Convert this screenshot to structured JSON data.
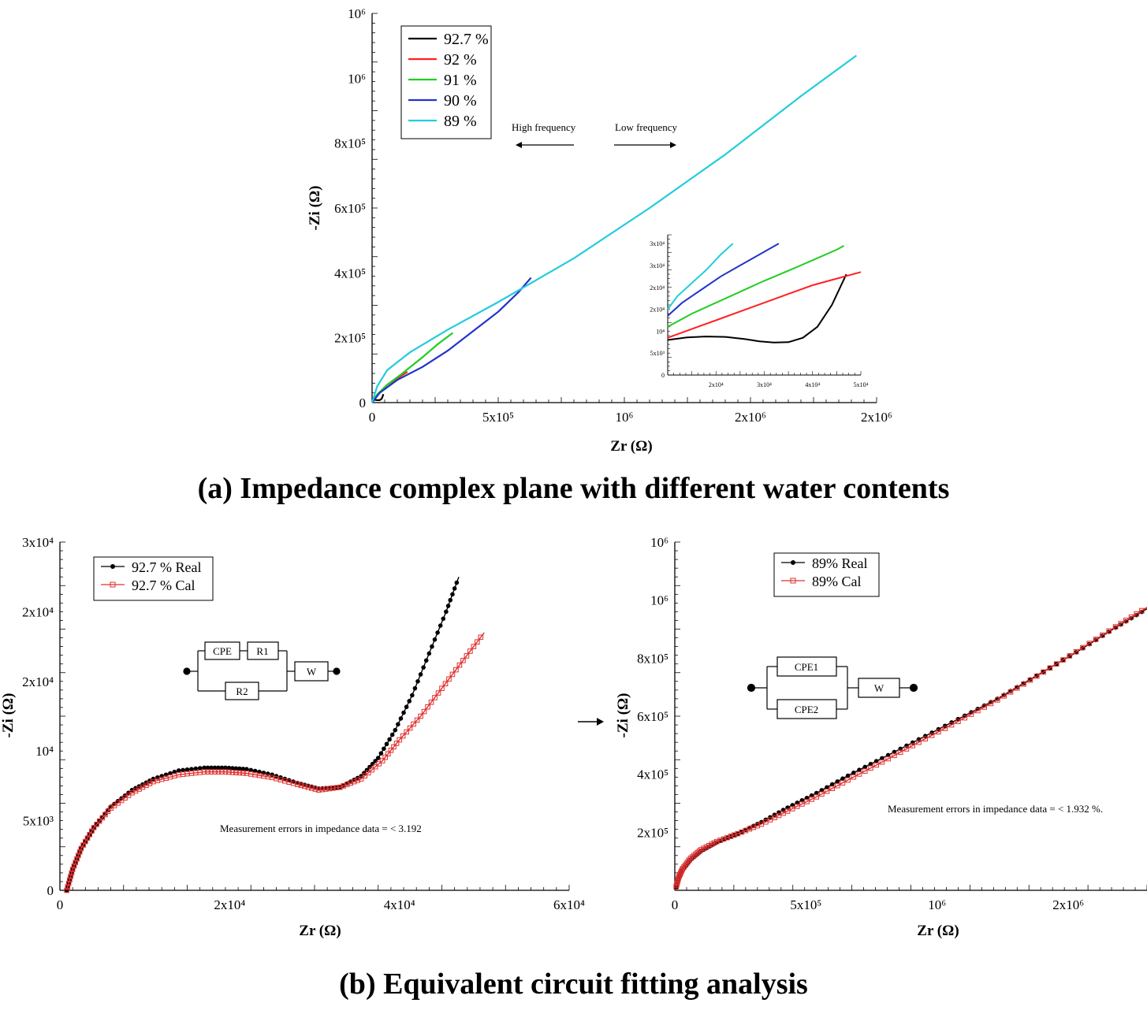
{
  "captions": {
    "a": "(a) Impedance complex plane with different water contents",
    "b": "(b) Equivalent circuit fitting analysis"
  },
  "annotations": {
    "high_freq": "High frequency",
    "low_freq": "Low frequency",
    "meas_left": "Measurement errors in impedance data = < 3.192",
    "meas_right": "Measurement errors in impedance data = < 1.932 %."
  },
  "circuits": {
    "left": {
      "cpe": "CPE",
      "r1": "R1",
      "r2": "R2",
      "w": "W"
    },
    "right": {
      "cpe1": "CPE1",
      "cpe2": "CPE2",
      "w": "W"
    }
  },
  "chart_data": [
    {
      "type": "line",
      "id": "top",
      "xlabel": "Zr (Ω)",
      "ylabel": "-Zi (Ω)",
      "xlim": [
        0,
        2000000
      ],
      "ylim": [
        0,
        1200000
      ],
      "x_ticks": [
        {
          "v": 0,
          "t": "0"
        },
        {
          "v": 500000,
          "t": "5x10⁵"
        },
        {
          "v": 1000000,
          "t": "10⁶"
        },
        {
          "v": 1500000,
          "t": "2x10⁶"
        },
        {
          "v": 2000000,
          "t": "2x10⁶"
        }
      ],
      "y_ticks": [
        {
          "v": 0,
          "t": "0"
        },
        {
          "v": 200000,
          "t": "2x10⁵"
        },
        {
          "v": 400000,
          "t": "4x10⁵"
        },
        {
          "v": 600000,
          "t": "6x10⁵"
        },
        {
          "v": 800000,
          "t": "8x10⁵"
        },
        {
          "v": 1000000,
          "t": "10⁶"
        },
        {
          "v": 1200000,
          "t": "10⁶"
        }
      ],
      "legend_position": "top-left",
      "series": [
        {
          "name": "92.7 %",
          "color": "#000000",
          "x": [
            0,
            5000,
            12000,
            20000,
            30000,
            38000,
            45000
          ],
          "y": [
            0,
            7000,
            8800,
            7500,
            7500,
            12000,
            26000
          ]
        },
        {
          "name": "92 %",
          "color": "#ff2020",
          "x": [
            0,
            10000,
            30000,
            60000,
            100000,
            140000
          ],
          "y": [
            0,
            12000,
            30000,
            55000,
            75000,
            95000
          ]
        },
        {
          "name": "91 %",
          "color": "#22cc22",
          "x": [
            0,
            20000,
            60000,
            120000,
            200000,
            260000,
            320000
          ],
          "y": [
            0,
            25000,
            55000,
            90000,
            140000,
            180000,
            215000
          ]
        },
        {
          "name": "90 %",
          "color": "#2233cc",
          "x": [
            0,
            30000,
            100000,
            200000,
            300000,
            400000,
            500000,
            580000,
            630000
          ],
          "y": [
            0,
            30000,
            70000,
            110000,
            160000,
            220000,
            280000,
            340000,
            385000
          ]
        },
        {
          "name": "89 %",
          "color": "#22ccdd",
          "x": [
            0,
            20000,
            60000,
            150000,
            300000,
            500000,
            800000,
            1100000,
            1400000,
            1700000,
            1920000
          ],
          "y": [
            0,
            50000,
            100000,
            155000,
            225000,
            310000,
            445000,
            600000,
            765000,
            945000,
            1070000
          ]
        }
      ],
      "inset": {
        "xlim": [
          10000,
          50000
        ],
        "ylim": [
          0,
          32000
        ],
        "x_ticks": [
          {
            "v": 20000,
            "t": "2x10⁴"
          },
          {
            "v": 30000,
            "t": "3x10⁴"
          },
          {
            "v": 40000,
            "t": "4x10⁴"
          },
          {
            "v": 50000,
            "t": "5x10⁴"
          }
        ],
        "y_ticks": [
          {
            "v": 0,
            "t": "0"
          },
          {
            "v": 5000,
            "t": "5x10³"
          },
          {
            "v": 10000,
            "t": "10⁴"
          },
          {
            "v": 15000,
            "t": "2x10⁴"
          },
          {
            "v": 20000,
            "t": "2x10⁴"
          },
          {
            "v": 25000,
            "t": "3x10⁴"
          },
          {
            "v": 30000,
            "t": "3x10⁴"
          }
        ],
        "series": [
          {
            "name": "92.7 %",
            "color": "#000000",
            "x": [
              10000,
              14000,
              18000,
              22000,
              26000,
              29000,
              32000,
              35000,
              38000,
              41000,
              44000,
              47000
            ],
            "y": [
              8000,
              8600,
              8800,
              8700,
              8200,
              7700,
              7400,
              7500,
              8500,
              11000,
              16000,
              23000
            ]
          },
          {
            "name": "92 %",
            "color": "#ff2020",
            "x": [
              10000,
              15000,
              20000,
              25000,
              30000,
              35000,
              40000,
              45000,
              50000
            ],
            "y": [
              8500,
              10500,
              12500,
              14500,
              16500,
              18500,
              20500,
              22000,
              23500
            ]
          },
          {
            "name": "91 %",
            "color": "#22cc22",
            "x": [
              10000,
              15000,
              20000,
              25000,
              30000,
              35000,
              40000,
              45000,
              46500
            ],
            "y": [
              11000,
              14000,
              16500,
              19000,
              21500,
              23800,
              26200,
              28600,
              29500
            ]
          },
          {
            "name": "90 %",
            "color": "#2233cc",
            "x": [
              10000,
              13000,
              17000,
              21000,
              25000,
              29000,
              33000
            ],
            "y": [
              13500,
              16500,
              19500,
              22500,
              25000,
              27500,
              30000
            ]
          },
          {
            "name": "89 %",
            "color": "#22ccdd",
            "x": [
              10000,
              12000,
              15000,
              18000,
              21000,
              23500
            ],
            "y": [
              15000,
              18000,
              21000,
              24000,
              27500,
              30000
            ]
          }
        ]
      }
    },
    {
      "type": "scatter",
      "id": "bottom-left",
      "xlabel": "Zr (Ω)",
      "ylabel": "-Zi (Ω)",
      "xlim": [
        0,
        60000
      ],
      "ylim": [
        0,
        25000
      ],
      "x_ticks": [
        {
          "v": 0,
          "t": "0"
        },
        {
          "v": 20000,
          "t": "2x10⁴"
        },
        {
          "v": 40000,
          "t": "4x10⁴"
        },
        {
          "v": 60000,
          "t": "6x10⁴"
        }
      ],
      "y_ticks": [
        {
          "v": 0,
          "t": "0"
        },
        {
          "v": 5000,
          "t": "5x10³"
        },
        {
          "v": 10000,
          "t": "10⁴"
        },
        {
          "v": 15000,
          "t": "2x10⁴"
        },
        {
          "v": 20000,
          "t": "2x10⁴"
        },
        {
          "v": 25000,
          "t": "3x10⁴"
        }
      ],
      "legend_position": "top-left",
      "series": [
        {
          "name": "92.7 %  Real",
          "color": "#000000",
          "marker": "circle",
          "x": [
            800,
            1500,
            2500,
            4000,
            6000,
            8500,
            11000,
            14000,
            17000,
            19500,
            22000,
            25000,
            28000,
            30500,
            33000,
            35500,
            37500,
            39500,
            41500,
            43500,
            45500,
            47000
          ],
          "y": [
            0,
            1500,
            3000,
            4500,
            6000,
            7200,
            8000,
            8600,
            8800,
            8800,
            8700,
            8300,
            7700,
            7300,
            7400,
            8200,
            9500,
            11500,
            14000,
            17000,
            20000,
            22500
          ]
        },
        {
          "name": "92.7 %  Cal",
          "color": "#e03030",
          "marker": "square",
          "x": [
            800,
            1500,
            2500,
            4000,
            6000,
            8500,
            11000,
            14000,
            17000,
            19500,
            22000,
            25000,
            28000,
            30500,
            33000,
            35500,
            38000,
            40000,
            42500,
            45000,
            47500,
            50000
          ],
          "y": [
            0,
            1500,
            3000,
            4500,
            5900,
            7000,
            7800,
            8300,
            8500,
            8500,
            8400,
            8100,
            7600,
            7200,
            7400,
            8000,
            9300,
            10800,
            12500,
            14500,
            16500,
            18500
          ]
        }
      ]
    },
    {
      "type": "scatter",
      "id": "bottom-right",
      "xlabel": "Zr (Ω)",
      "ylabel": "-Zi (Ω)",
      "xlim": [
        0,
        1800000
      ],
      "ylim": [
        0,
        1200000
      ],
      "x_ticks": [
        {
          "v": 0,
          "t": "0"
        },
        {
          "v": 500000,
          "t": "5x10⁵"
        },
        {
          "v": 1000000,
          "t": "10⁶"
        },
        {
          "v": 1500000,
          "t": "2x10⁶"
        }
      ],
      "y_ticks": [
        {
          "v": 200000,
          "t": "2x10⁵"
        },
        {
          "v": 400000,
          "t": "4x10⁵"
        },
        {
          "v": 600000,
          "t": "6x10⁵"
        },
        {
          "v": 800000,
          "t": "8x10⁵"
        },
        {
          "v": 1000000,
          "t": "10⁶"
        },
        {
          "v": 1200000,
          "t": "10⁶"
        }
      ],
      "legend_position": "top-left",
      "series": [
        {
          "name": "89%  Real",
          "color": "#000000",
          "marker": "circle",
          "x": [
            5000,
            15000,
            30000,
            60000,
            100000,
            160000,
            240000,
            330000,
            430000,
            540000,
            660000,
            790000,
            930000,
            1080000,
            1230000,
            1380000,
            1530000,
            1680000,
            1800000
          ],
          "y": [
            10000,
            40000,
            70000,
            105000,
            135000,
            165000,
            195000,
            235000,
            285000,
            335000,
            395000,
            455000,
            520000,
            590000,
            660000,
            740000,
            820000,
            905000,
            970000
          ]
        },
        {
          "name": "89%  Cal",
          "color": "#e03030",
          "marker": "square",
          "x": [
            5000,
            15000,
            30000,
            60000,
            100000,
            160000,
            240000,
            330000,
            430000,
            540000,
            660000,
            790000,
            930000,
            1080000,
            1230000,
            1380000,
            1530000,
            1680000,
            1800000
          ],
          "y": [
            12000,
            45000,
            75000,
            110000,
            140000,
            168000,
            195000,
            228000,
            273000,
            322000,
            380000,
            442000,
            510000,
            582000,
            656000,
            738000,
            822000,
            908000,
            975000
          ]
        }
      ]
    }
  ]
}
